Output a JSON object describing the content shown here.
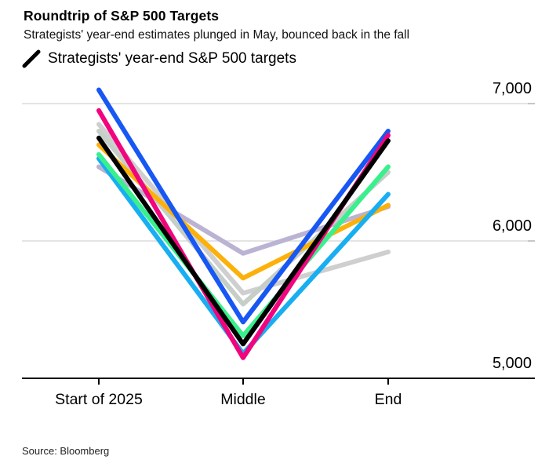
{
  "header": {
    "title": "Roundtrip of S&P 500 Targets",
    "subtitle": "Strategists' year-end estimates plunged in May, bounced back in the fall"
  },
  "legend": {
    "label": "Strategists' year-end S&P 500 targets",
    "marker": "black-slash",
    "marker_color": "#000000"
  },
  "source": "Source: Bloomberg",
  "chart_data": {
    "type": "line",
    "title": "Roundtrip of S&P 500 Targets",
    "xlabel": "",
    "ylabel": "",
    "categories": [
      "Start of 2025",
      "Middle",
      "End"
    ],
    "series": [
      {
        "name": "strategist-line-blue",
        "color": "#1757f3",
        "z": 7,
        "values": [
          7100,
          5410,
          6800
        ]
      },
      {
        "name": "strategist-line-magenta",
        "color": "#f2047e",
        "z": 8,
        "values": [
          6950,
          5150,
          6770
        ]
      },
      {
        "name": "strategist-line-silver",
        "color": "#cfcfcf",
        "z": 2,
        "values": [
          6850,
          5620,
          5920
        ]
      },
      {
        "name": "strategist-line-sagegray",
        "color": "#c5cfc8",
        "z": 3,
        "values": [
          6800,
          5540,
          6500
        ]
      },
      {
        "name": "strategist-line-black",
        "color": "#000000",
        "z": 9,
        "values": [
          6750,
          5250,
          6730
        ]
      },
      {
        "name": "strategist-line-amber",
        "color": "#fcb10a",
        "z": 4,
        "values": [
          6700,
          5730,
          6260
        ]
      },
      {
        "name": "strategist-line-green",
        "color": "#39f08c",
        "z": 6,
        "values": [
          6630,
          5310,
          6540
        ]
      },
      {
        "name": "strategist-line-skyblue",
        "color": "#18aef2",
        "z": 5,
        "values": [
          6600,
          5180,
          6340
        ]
      },
      {
        "name": "strategist-line-lavender",
        "color": "#bab3d3",
        "z": 1,
        "values": [
          6540,
          5910,
          6250
        ]
      }
    ],
    "yticks": [
      {
        "value": 7000,
        "label": "7,000",
        "axis": false
      },
      {
        "value": 6000,
        "label": "6,000",
        "axis": false
      },
      {
        "value": 5000,
        "label": "5,000",
        "axis": true
      }
    ],
    "ylim": [
      5000,
      7150
    ],
    "grid": "horizontal",
    "gridline_color": "#dcdcdc",
    "axis_color": "#000000",
    "legend_position": "top-left"
  }
}
